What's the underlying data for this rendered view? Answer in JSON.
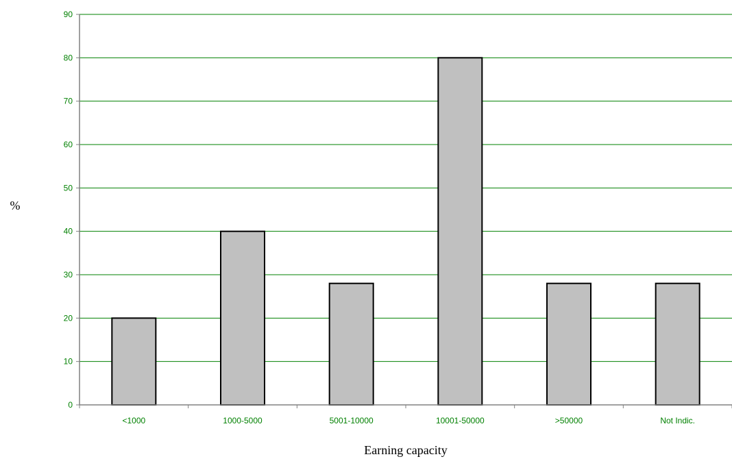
{
  "chart_data": {
    "type": "bar",
    "categories": [
      "<1000",
      "1000-5000",
      "5001-10000",
      "10001-50000",
      ">50000",
      "Not Indic."
    ],
    "values": [
      20,
      40,
      28,
      80,
      28,
      28
    ],
    "title": "",
    "xlabel": "Earning capacity",
    "ylabel": "%",
    "ylim": [
      0,
      90
    ],
    "yticks": [
      "0",
      "10",
      "20",
      "30",
      "40",
      "50",
      "60",
      "70",
      "80",
      "90"
    ],
    "grid": true,
    "legend": "none"
  },
  "colors": {
    "bar_fill": "#c0c0c0",
    "bar_stroke": "#000000",
    "grid": "#008000",
    "axis": "#808080",
    "tick_text": "#008000",
    "label_text": "#000000"
  }
}
